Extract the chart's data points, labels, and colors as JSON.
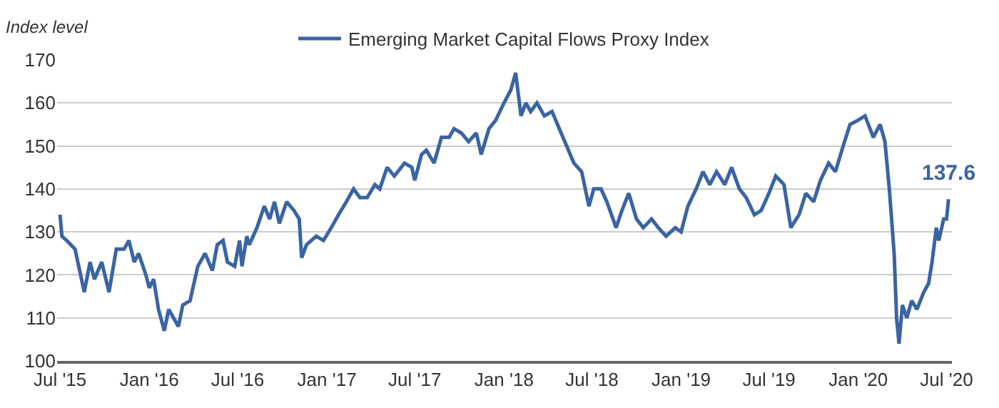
{
  "chart_data": {
    "type": "line",
    "ylabel": "Index level",
    "legend": "top",
    "grid": "y",
    "marker": "none",
    "line_style": "solid",
    "x": [
      "2015-07-01",
      "2015-07-05",
      "2015-07-15",
      "2015-08-01",
      "2015-08-20",
      "2015-09-01",
      "2015-09-10",
      "2015-09-25",
      "2015-10-10",
      "2015-10-25",
      "2015-11-10",
      "2015-11-20",
      "2015-12-01",
      "2015-12-10",
      "2015-12-25",
      "2016-01-01",
      "2016-01-10",
      "2016-01-20",
      "2016-02-01",
      "2016-02-10",
      "2016-02-20",
      "2016-03-01",
      "2016-03-10",
      "2016-03-25",
      "2016-04-10",
      "2016-04-25",
      "2016-05-10",
      "2016-05-20",
      "2016-06-01",
      "2016-06-10",
      "2016-06-25",
      "2016-07-05",
      "2016-07-10",
      "2016-07-20",
      "2016-07-25",
      "2016-08-10",
      "2016-08-25",
      "2016-09-05",
      "2016-09-15",
      "2016-09-25",
      "2016-10-10",
      "2016-10-25",
      "2016-11-05",
      "2016-11-10",
      "2016-11-20",
      "2016-12-10",
      "2016-12-25",
      "2017-01-10",
      "2017-01-25",
      "2017-02-10",
      "2017-02-25",
      "2017-03-10",
      "2017-03-25",
      "2017-04-10",
      "2017-04-20",
      "2017-05-05",
      "2017-05-20",
      "2017-06-10",
      "2017-06-25",
      "2017-07-01",
      "2017-07-15",
      "2017-07-25",
      "2017-08-10",
      "2017-08-25",
      "2017-09-10",
      "2017-09-20",
      "2017-10-05",
      "2017-10-20",
      "2017-11-05",
      "2017-11-15",
      "2017-12-01",
      "2017-12-15",
      "2018-01-01",
      "2018-01-15",
      "2018-01-25",
      "2018-02-05",
      "2018-02-15",
      "2018-02-25",
      "2018-03-10",
      "2018-03-25",
      "2018-04-10",
      "2018-04-25",
      "2018-05-10",
      "2018-05-25",
      "2018-06-10",
      "2018-06-25",
      "2018-07-05",
      "2018-07-20",
      "2018-08-01",
      "2018-08-20",
      "2018-09-01",
      "2018-09-15",
      "2018-10-01",
      "2018-10-15",
      "2018-11-01",
      "2018-11-15",
      "2018-12-01",
      "2018-12-20",
      "2019-01-01",
      "2019-01-15",
      "2019-02-01",
      "2019-02-15",
      "2019-03-01",
      "2019-03-15",
      "2019-04-01",
      "2019-04-15",
      "2019-05-01",
      "2019-05-15",
      "2019-06-01",
      "2019-06-15",
      "2019-07-01",
      "2019-07-15",
      "2019-08-01",
      "2019-08-15",
      "2019-09-01",
      "2019-09-15",
      "2019-10-01",
      "2019-10-15",
      "2019-11-01",
      "2019-11-15",
      "2019-12-01",
      "2019-12-15",
      "2020-01-01",
      "2020-01-15",
      "2020-02-01",
      "2020-02-15",
      "2020-02-25",
      "2020-03-05",
      "2020-03-15",
      "2020-03-20",
      "2020-03-25",
      "2020-04-01",
      "2020-04-10",
      "2020-04-20",
      "2020-05-01",
      "2020-05-15",
      "2020-05-25",
      "2020-06-01",
      "2020-06-10",
      "2020-06-15",
      "2020-06-25",
      "2020-07-01",
      "2020-07-05"
    ],
    "series": [
      {
        "name": "Emerging Market Capital Flows Proxy Index",
        "color": "#3a64a3",
        "values": [
          134,
          129,
          128,
          126,
          116,
          123,
          119,
          123,
          116,
          126,
          126,
          128,
          123,
          125,
          120,
          117,
          119,
          112,
          107,
          112,
          110,
          108,
          113,
          114,
          122,
          125,
          121,
          127,
          128,
          123,
          122,
          128,
          122,
          129,
          127,
          131,
          136,
          133,
          137,
          132,
          137,
          135,
          133,
          124,
          127,
          129,
          128,
          131,
          134,
          137,
          140,
          138,
          138,
          141,
          140,
          145,
          143,
          146,
          145,
          142,
          148,
          149,
          146,
          152,
          152,
          154,
          153,
          151,
          153,
          148,
          154,
          156,
          160,
          163,
          167,
          157,
          160,
          158,
          160,
          157,
          158,
          154,
          150,
          146,
          144,
          136,
          140,
          140,
          137,
          131,
          135,
          139,
          133,
          131,
          133,
          131,
          129,
          131,
          130,
          136,
          140,
          144,
          141,
          144,
          141,
          145,
          140,
          138,
          134,
          135,
          139,
          143,
          141,
          131,
          134,
          139,
          137,
          142,
          146,
          144,
          150,
          155,
          156,
          157,
          152,
          155,
          151,
          140,
          125,
          110,
          104,
          113,
          110,
          114,
          112,
          116,
          118,
          123,
          131,
          128,
          133,
          133,
          137.6
        ]
      }
    ],
    "annotations": [
      {
        "text": "137.6",
        "x": "2020-07-05",
        "y": 137.6
      }
    ],
    "xlim": [
      "2015-06-25",
      "2020-07-12"
    ],
    "xticks": [
      {
        "value": "2015-07-01",
        "label": "Jul '15"
      },
      {
        "value": "2016-01-01",
        "label": "Jan '16"
      },
      {
        "value": "2016-07-01",
        "label": "Jul '16"
      },
      {
        "value": "2017-01-01",
        "label": "Jan '17"
      },
      {
        "value": "2017-07-01",
        "label": "Jul '17"
      },
      {
        "value": "2018-01-01",
        "label": "Jan '18"
      },
      {
        "value": "2018-07-01",
        "label": "Jul '18"
      },
      {
        "value": "2019-01-01",
        "label": "Jan '19"
      },
      {
        "value": "2019-07-01",
        "label": "Jul '19"
      },
      {
        "value": "2020-01-01",
        "label": "Jan '20"
      },
      {
        "value": "2020-07-01",
        "label": "Jul '20"
      }
    ],
    "ylim": [
      100,
      170
    ],
    "yticks": [
      100,
      110,
      120,
      130,
      140,
      150,
      160,
      170
    ]
  }
}
